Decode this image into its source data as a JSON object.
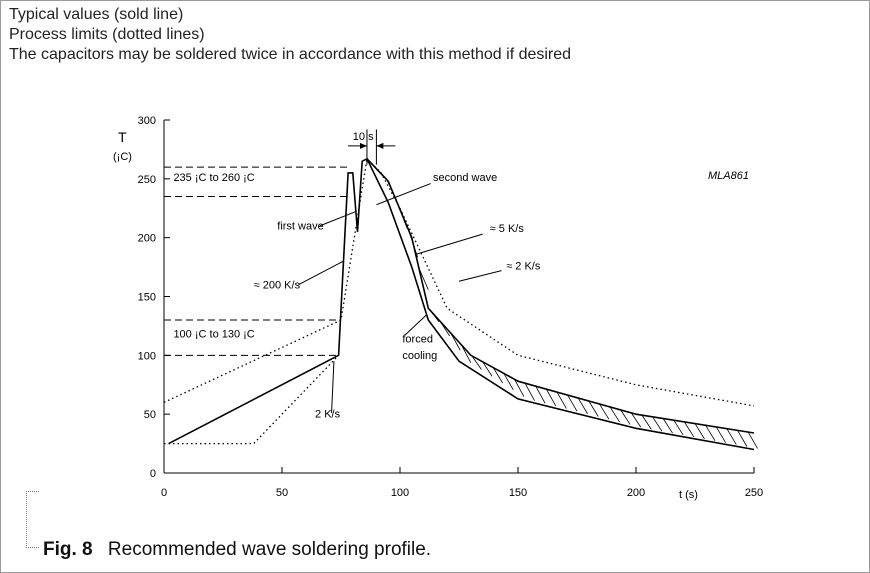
{
  "notes": [
    "Typical values (sold line)",
    "Process limits (dotted lines)",
    "The capacitors may be soldered twice in accordance with this method if desired"
  ],
  "caption": {
    "fig": "Fig. 8",
    "text": "Recommended wave soldering profile."
  },
  "chart_data": {
    "type": "line",
    "code": "MLA861",
    "xlabel": "t (s)",
    "ylabel": "T",
    "ylabel_unit": "(¡C)",
    "xlim": [
      0,
      250
    ],
    "ylim": [
      0,
      300
    ],
    "x_ticks": [
      0,
      50,
      100,
      150,
      200,
      250
    ],
    "y_ticks": [
      0,
      50,
      100,
      150,
      200,
      250,
      300
    ],
    "grid": false,
    "series": [
      {
        "style": "solid",
        "points": [
          [
            2,
            25
          ],
          [
            74,
            100
          ],
          [
            78,
            255
          ],
          [
            80,
            255
          ],
          [
            82,
            205
          ],
          [
            84,
            265
          ],
          [
            86,
            267
          ],
          [
            95,
            230
          ],
          [
            105,
            175
          ],
          [
            112,
            130
          ],
          [
            125,
            95
          ],
          [
            150,
            63
          ],
          [
            200,
            38
          ],
          [
            250,
            20
          ]
        ]
      },
      {
        "style": "solid",
        "points": [
          [
            86,
            267
          ],
          [
            95,
            248
          ],
          [
            105,
            200
          ],
          [
            112,
            140
          ],
          [
            130,
            100
          ],
          [
            150,
            78
          ],
          [
            200,
            50
          ],
          [
            250,
            34
          ]
        ]
      },
      {
        "style": "dotted",
        "points": [
          [
            0,
            60
          ],
          [
            75,
            130
          ],
          [
            86,
            267
          ],
          [
            92,
            255
          ],
          [
            100,
            225
          ],
          [
            120,
            140
          ],
          [
            150,
            100
          ],
          [
            200,
            75
          ],
          [
            250,
            57
          ]
        ]
      },
      {
        "style": "dotted",
        "points": [
          [
            0,
            25
          ],
          [
            38,
            25
          ],
          [
            74,
            100
          ]
        ]
      }
    ],
    "reference_lines": [
      {
        "y": 260
      },
      {
        "y": 235
      },
      {
        "y": 130
      },
      {
        "y": 100
      }
    ],
    "annotations": [
      {
        "text": "235 ¡C  to  260 ¡C",
        "x": 4,
        "y": 248
      },
      {
        "text": "100 ¡C  to  130 ¡C",
        "x": 4,
        "y": 115
      },
      {
        "text": "10 s",
        "x": 80,
        "y": 283
      },
      {
        "text": "second wave",
        "x": 114,
        "y": 248
      },
      {
        "text": "first wave",
        "x": 48,
        "y": 207
      },
      {
        "text": "≈ 200 K/s",
        "x": 38,
        "y": 157
      },
      {
        "text": "≈ 5 K/s",
        "x": 138,
        "y": 205
      },
      {
        "text": "≈ 2 K/s",
        "x": 145,
        "y": 173
      },
      {
        "text": "forced",
        "x": 101,
        "y": 111
      },
      {
        "text": "cooling",
        "x": 101,
        "y": 97
      },
      {
        "text": "2 K/s",
        "x": 64,
        "y": 47
      }
    ],
    "colors": {
      "line": "#000000",
      "background": "#ffffff"
    }
  }
}
